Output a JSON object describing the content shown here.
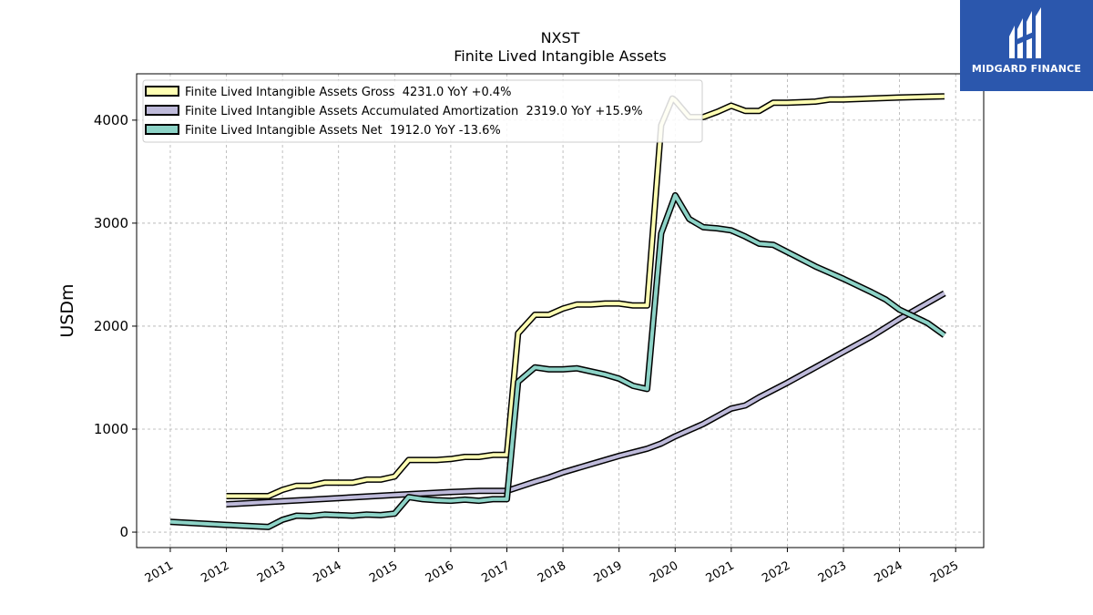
{
  "brand": {
    "name": "MIDGARD FINANCE",
    "bg_color": "#2b57ad"
  },
  "chart_data": {
    "type": "line",
    "title": "NXST",
    "subtitle": "Finite Lived Intangible Assets",
    "xlabel": "",
    "ylabel": "USDm",
    "xlim": [
      2010.4,
      2025.5
    ],
    "ylim": [
      -150,
      4450
    ],
    "x_ticks": [
      "2011",
      "2012",
      "2013",
      "2014",
      "2015",
      "2016",
      "2017",
      "2018",
      "2019",
      "2020",
      "2021",
      "2022",
      "2023",
      "2024",
      "2025"
    ],
    "y_ticks": [
      0,
      1000,
      2000,
      3000,
      4000
    ],
    "grid": true,
    "legend_position": "top-left",
    "series": [
      {
        "name": "Finite Lived Intangible Assets Gross  4231.0 YoY +0.4%",
        "color": "#ffffb3",
        "points": [
          [
            2012.0,
            350
          ],
          [
            2012.75,
            350
          ],
          [
            2013.0,
            410
          ],
          [
            2013.25,
            450
          ],
          [
            2013.5,
            450
          ],
          [
            2013.75,
            480
          ],
          [
            2014.0,
            480
          ],
          [
            2014.25,
            480
          ],
          [
            2014.5,
            510
          ],
          [
            2014.75,
            510
          ],
          [
            2015.0,
            540
          ],
          [
            2015.25,
            700
          ],
          [
            2015.5,
            700
          ],
          [
            2015.75,
            700
          ],
          [
            2016.0,
            710
          ],
          [
            2016.25,
            730
          ],
          [
            2016.5,
            730
          ],
          [
            2016.75,
            750
          ],
          [
            2017.0,
            750
          ],
          [
            2017.2,
            1930
          ],
          [
            2017.5,
            2110
          ],
          [
            2017.75,
            2110
          ],
          [
            2018.0,
            2170
          ],
          [
            2018.25,
            2210
          ],
          [
            2018.5,
            2210
          ],
          [
            2018.75,
            2220
          ],
          [
            2019.0,
            2220
          ],
          [
            2019.25,
            2200
          ],
          [
            2019.5,
            2200
          ],
          [
            2019.75,
            3950
          ],
          [
            2019.95,
            4210
          ],
          [
            2020.0,
            4190
          ],
          [
            2020.25,
            4030
          ],
          [
            2020.5,
            4030
          ],
          [
            2020.75,
            4080
          ],
          [
            2021.0,
            4140
          ],
          [
            2021.25,
            4090
          ],
          [
            2021.5,
            4090
          ],
          [
            2021.75,
            4170
          ],
          [
            2022.0,
            4170
          ],
          [
            2022.5,
            4180
          ],
          [
            2022.75,
            4200
          ],
          [
            2023.0,
            4200
          ],
          [
            2024.0,
            4220
          ],
          [
            2024.8,
            4231
          ]
        ]
      },
      {
        "name": "Finite Lived Intangible Assets Accumulated Amortization  2319.0 YoY +15.9%",
        "color": "#bebada",
        "points": [
          [
            2012.0,
            270
          ],
          [
            2013.0,
            300
          ],
          [
            2014.0,
            330
          ],
          [
            2015.0,
            360
          ],
          [
            2016.0,
            390
          ],
          [
            2016.5,
            400
          ],
          [
            2017.0,
            400
          ],
          [
            2017.5,
            490
          ],
          [
            2017.75,
            530
          ],
          [
            2018.0,
            580
          ],
          [
            2018.5,
            660
          ],
          [
            2019.0,
            740
          ],
          [
            2019.5,
            810
          ],
          [
            2019.75,
            860
          ],
          [
            2020.0,
            930
          ],
          [
            2020.5,
            1050
          ],
          [
            2021.0,
            1200
          ],
          [
            2021.25,
            1230
          ],
          [
            2021.5,
            1310
          ],
          [
            2022.0,
            1450
          ],
          [
            2022.5,
            1600
          ],
          [
            2023.0,
            1750
          ],
          [
            2023.5,
            1900
          ],
          [
            2024.0,
            2070
          ],
          [
            2024.8,
            2319
          ]
        ]
      },
      {
        "name": "Finite Lived Intangible Assets Net  1912.0 YoY -13.6%",
        "color": "#8dd3c7",
        "points": [
          [
            2011.0,
            100
          ],
          [
            2012.0,
            70
          ],
          [
            2012.75,
            50
          ],
          [
            2013.0,
            120
          ],
          [
            2013.25,
            160
          ],
          [
            2013.5,
            155
          ],
          [
            2013.75,
            170
          ],
          [
            2014.0,
            165
          ],
          [
            2014.25,
            160
          ],
          [
            2014.5,
            170
          ],
          [
            2014.75,
            165
          ],
          [
            2015.0,
            180
          ],
          [
            2015.25,
            340
          ],
          [
            2015.5,
            320
          ],
          [
            2015.75,
            310
          ],
          [
            2016.0,
            305
          ],
          [
            2016.25,
            315
          ],
          [
            2016.5,
            305
          ],
          [
            2016.75,
            320
          ],
          [
            2017.0,
            320
          ],
          [
            2017.2,
            1460
          ],
          [
            2017.5,
            1600
          ],
          [
            2017.75,
            1580
          ],
          [
            2018.0,
            1580
          ],
          [
            2018.25,
            1590
          ],
          [
            2018.5,
            1560
          ],
          [
            2018.75,
            1530
          ],
          [
            2019.0,
            1490
          ],
          [
            2019.25,
            1420
          ],
          [
            2019.5,
            1390
          ],
          [
            2019.75,
            2900
          ],
          [
            2020.0,
            3270
          ],
          [
            2020.25,
            3040
          ],
          [
            2020.5,
            2960
          ],
          [
            2020.75,
            2950
          ],
          [
            2021.0,
            2930
          ],
          [
            2021.25,
            2870
          ],
          [
            2021.5,
            2800
          ],
          [
            2021.75,
            2790
          ],
          [
            2022.0,
            2720
          ],
          [
            2022.5,
            2580
          ],
          [
            2022.75,
            2520
          ],
          [
            2023.0,
            2460
          ],
          [
            2023.5,
            2330
          ],
          [
            2023.75,
            2260
          ],
          [
            2024.0,
            2160
          ],
          [
            2024.5,
            2030
          ],
          [
            2024.8,
            1912
          ]
        ]
      }
    ]
  }
}
